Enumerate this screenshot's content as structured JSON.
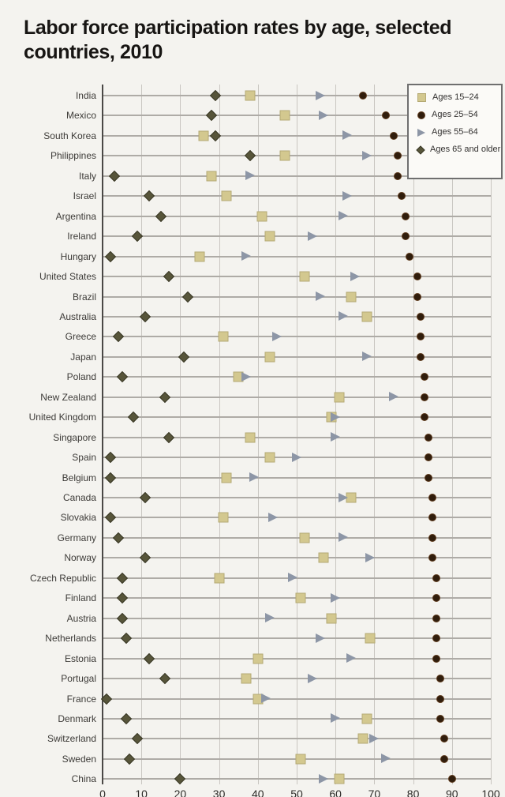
{
  "chart_data": {
    "type": "scatter",
    "title": "Labor force participation rates by age, selected countries, 2010",
    "title_lines": [
      "Labor force participation rates by age, selected",
      "countries, 2010"
    ],
    "xlabel": "",
    "ylabel": "",
    "xlim": [
      0,
      100
    ],
    "x_ticks": [
      0,
      10,
      20,
      30,
      40,
      50,
      60,
      70,
      80,
      90,
      100
    ],
    "grid": true,
    "legend_position": "top-right",
    "unit": "percent",
    "categories": [
      "India",
      "Mexico",
      "South Korea",
      "Philippines",
      "Italy",
      "Israel",
      "Argentina",
      "Ireland",
      "Hungary",
      "United States",
      "Brazil",
      "Australia",
      "Greece",
      "Japan",
      "Poland",
      "New Zealand",
      "United Kingdom",
      "Singapore",
      "Spain",
      "Belgium",
      "Canada",
      "Slovakia",
      "Germany",
      "Norway",
      "Czech Republic",
      "Finland",
      "Austria",
      "Netherlands",
      "Estonia",
      "Portugal",
      "France",
      "Denmark",
      "Switzerland",
      "Sweden",
      "China"
    ],
    "series": [
      {
        "name": "Ages 15–24",
        "marker": "square",
        "values": [
          38,
          47,
          26,
          47,
          28,
          32,
          41,
          43,
          25,
          52,
          64,
          68,
          31,
          43,
          35,
          61,
          59,
          38,
          43,
          32,
          64,
          31,
          52,
          57,
          30,
          51,
          59,
          69,
          40,
          37,
          40,
          68,
          67,
          51,
          61
        ]
      },
      {
        "name": "Ages 25–54",
        "marker": "circle",
        "values": [
          67,
          73,
          75,
          76,
          76,
          77,
          78,
          78,
          79,
          81,
          81,
          82,
          82,
          82,
          83,
          83,
          83,
          84,
          84,
          84,
          85,
          85,
          85,
          85,
          86,
          86,
          86,
          86,
          86,
          87,
          87,
          87,
          88,
          88,
          90
        ]
      },
      {
        "name": "Ages 55–64",
        "marker": "triangle",
        "values": [
          56,
          57,
          63,
          68,
          38,
          63,
          62,
          54,
          37,
          65,
          56,
          62,
          45,
          68,
          37,
          75,
          60,
          60,
          50,
          39,
          62,
          44,
          62,
          69,
          49,
          60,
          43,
          56,
          64,
          54,
          42,
          60,
          70,
          73,
          57
        ]
      },
      {
        "name": "Ages 65 and older",
        "marker": "diamond",
        "values": [
          29,
          28,
          29,
          38,
          3,
          12,
          15,
          9,
          2,
          17,
          22,
          11,
          4,
          21,
          5,
          16,
          8,
          17,
          2,
          2,
          11,
          2,
          4,
          11,
          5,
          5,
          5,
          6,
          12,
          16,
          1,
          6,
          9,
          7,
          20
        ]
      }
    ],
    "colors": {
      "square_fill": "#d3c88f",
      "square_border": "#b5aa74",
      "circle_fill": "#301d0c",
      "circle_border": "#5e3a1c",
      "triangle_fill": "#8d96a6",
      "diamond_fill": "#57553a",
      "diamond_border": "#3a3927",
      "row_line": "#aeaba6",
      "gridline": "#c9c6c1",
      "axis_line": "#4a4846",
      "background": "#f4f3ef"
    }
  }
}
